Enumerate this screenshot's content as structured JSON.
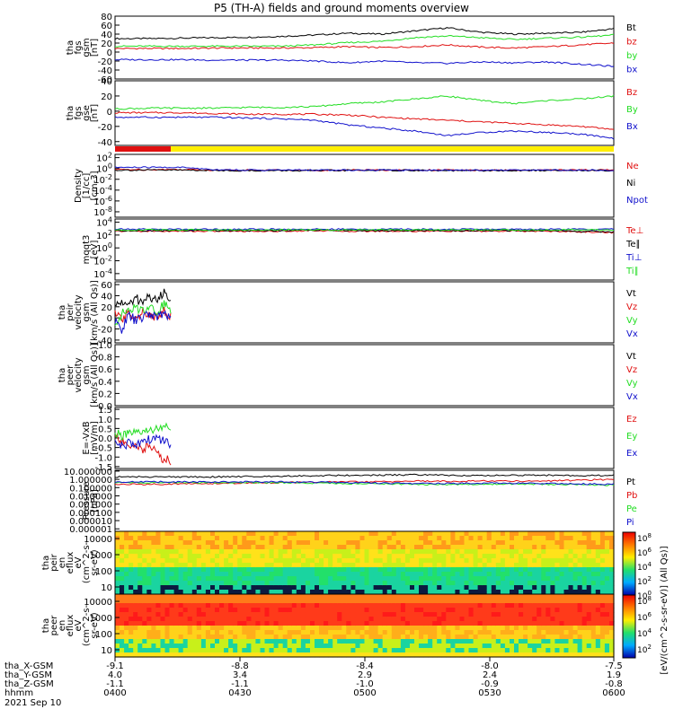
{
  "title": "P5 (TH-A) fields and ground moments overview",
  "date_label": "2021 Sep 10",
  "colors": {
    "black": "#000000",
    "red": "#e01010",
    "green": "#22dd22",
    "blue": "#1010cc",
    "yellow": "#ffee00",
    "frame": "#000000"
  },
  "chart_data": [
    {
      "type": "line",
      "panel": "fgs_gsm",
      "ylabel": [
        "tha",
        "fgs",
        "gsm",
        "[nT]"
      ],
      "yticks": [
        "80",
        "60",
        "40",
        "20",
        "0",
        "-20",
        "-40",
        "-60"
      ],
      "ylim": [
        -60,
        80
      ],
      "series": [
        {
          "name": "Bt",
          "color": "#000000",
          "values": [
            30,
            30,
            31,
            32,
            33,
            35,
            38,
            42,
            40,
            47,
            54,
            44,
            40,
            42,
            44,
            52
          ]
        },
        {
          "name": "bz",
          "color": "#e01010",
          "values": [
            8,
            8,
            8,
            9,
            9,
            9,
            10,
            12,
            10,
            12,
            16,
            11,
            9,
            12,
            16,
            20
          ]
        },
        {
          "name": "by",
          "color": "#22dd22",
          "values": [
            13,
            13,
            13,
            13,
            13,
            13,
            16,
            21,
            24,
            32,
            36,
            32,
            28,
            31,
            33,
            38
          ]
        },
        {
          "name": "bx",
          "color": "#1010cc",
          "values": [
            -17,
            -17,
            -17,
            -18,
            -18,
            -18,
            -20,
            -24,
            -20,
            -24,
            -25,
            -22,
            -24,
            -22,
            -27,
            -32
          ]
        }
      ]
    },
    {
      "type": "line",
      "panel": "fgs_gse",
      "ylabel": [
        "tha",
        "fgs",
        "gse",
        "[nT]"
      ],
      "yticks": [
        "40",
        "20",
        "0",
        "-20",
        "-40"
      ],
      "ylim": [
        -45,
        40
      ],
      "series": [
        {
          "name": "Bz",
          "color": "#e01010",
          "values": [
            -2,
            -2,
            -2,
            -3,
            -4,
            -4,
            -4,
            -5,
            -8,
            -10,
            -12,
            -14,
            -16,
            -18,
            -20,
            -24
          ]
        },
        {
          "name": "By",
          "color": "#22dd22",
          "values": [
            3,
            4,
            4,
            4,
            5,
            5,
            6,
            10,
            12,
            16,
            20,
            14,
            10,
            14,
            16,
            20
          ]
        },
        {
          "name": "Bx",
          "color": "#1010cc",
          "values": [
            -8,
            -8,
            -8,
            -8,
            -9,
            -10,
            -12,
            -18,
            -22,
            -26,
            -32,
            -28,
            -26,
            -28,
            -30,
            -36
          ]
        }
      ]
    },
    {
      "type": "line",
      "panel": "density",
      "ylabel": [
        "Density",
        "[1/cc]",
        "[cm-3]"
      ],
      "yticks": [
        "10^2",
        "10^0",
        "10^-2",
        "10^-4",
        "10^-6",
        "10^-8"
      ],
      "ylim": [
        -9,
        2.6
      ],
      "log": true,
      "series": [
        {
          "name": "Ne",
          "color": "#e01010",
          "values": [
            -0.2,
            -0.2,
            -0.2,
            -0.3,
            -0.3,
            -0.3,
            -0.35,
            -0.3,
            -0.3,
            -0.3,
            -0.3,
            -0.35,
            -0.35,
            -0.3,
            -0.3,
            -0.3
          ]
        },
        {
          "name": "Ni",
          "color": "#000000",
          "values": [
            -0.3,
            -0.3,
            -0.3,
            -0.35,
            -0.4,
            -0.4,
            -0.4,
            -0.35,
            -0.35,
            -0.35,
            -0.4,
            -0.4,
            -0.4,
            -0.35,
            -0.35,
            -0.35
          ]
        },
        {
          "name": "Npot",
          "color": "#1010cc",
          "values": [
            0.2,
            0.2,
            0.2,
            -0.2,
            -0.3,
            -0.3,
            -0.3,
            -0.3,
            -0.3,
            -0.3,
            -0.3,
            -0.3,
            -0.3,
            -0.3,
            -0.3,
            -0.3
          ]
        }
      ]
    },
    {
      "type": "line",
      "panel": "temperature",
      "ylabel": [
        "mqqt3",
        "[eV]"
      ],
      "yticks": [
        "10^4",
        "10^2",
        "10^0",
        "10^-2",
        "10^-4"
      ],
      "ylim": [
        -5,
        4.5
      ],
      "log": true,
      "series": [
        {
          "name": "Te⊥",
          "color": "#e01010",
          "values": [
            2.6,
            2.6,
            2.6,
            2.6,
            2.6,
            2.6,
            2.7,
            2.6,
            2.6,
            2.6,
            2.6,
            2.6,
            2.6,
            2.6,
            2.5,
            2.4
          ]
        },
        {
          "name": "Te∥",
          "color": "#000000",
          "values": [
            2.7,
            2.7,
            2.7,
            2.7,
            2.7,
            2.7,
            2.8,
            2.7,
            2.7,
            2.7,
            2.7,
            2.7,
            2.7,
            2.7,
            2.6,
            2.5
          ]
        },
        {
          "name": "Ti⊥",
          "color": "#1010cc",
          "values": [
            2.9,
            2.9,
            2.9,
            2.9,
            2.9,
            2.9,
            2.9,
            2.9,
            2.9,
            2.9,
            2.9,
            2.9,
            2.9,
            2.9,
            2.9,
            2.9
          ]
        },
        {
          "name": "Ti∥",
          "color": "#22dd22",
          "values": [
            2.8,
            2.8,
            2.8,
            2.8,
            2.8,
            2.8,
            2.8,
            2.8,
            2.8,
            2.8,
            2.8,
            2.8,
            2.8,
            2.8,
            2.8,
            2.8
          ]
        }
      ]
    },
    {
      "type": "line",
      "panel": "peir_velocity",
      "ylabel": [
        "tha",
        "peir",
        "velocity",
        "gsm",
        "[km/s (All Qs)]"
      ],
      "yticks": [
        "60",
        "40",
        "20",
        "0",
        "-20",
        "-40"
      ],
      "ylim": [
        -45,
        65
      ],
      "series": [
        {
          "name": "Vt",
          "color": "#000000",
          "values": [
            20,
            30,
            22,
            35,
            28,
            40,
            30,
            45,
            38
          ]
        },
        {
          "name": "Vz",
          "color": "#e01010",
          "values": [
            5,
            -2,
            8,
            2,
            10,
            0,
            6,
            12,
            4
          ]
        },
        {
          "name": "Vy",
          "color": "#22dd22",
          "values": [
            -10,
            8,
            12,
            18,
            14,
            22,
            10,
            25,
            16
          ]
        },
        {
          "name": "Vx",
          "color": "#1010cc",
          "values": [
            -8,
            -20,
            5,
            -5,
            0,
            8,
            2,
            6,
            4
          ]
        }
      ]
    },
    {
      "type": "line",
      "panel": "peer_velocity",
      "ylabel": [
        "tha",
        "peer",
        "velocity",
        "gsm",
        "[km/s (All Qs)]"
      ],
      "yticks": [
        "1.0",
        "0.8",
        "0.6",
        "0.4",
        "0.2",
        "0.0"
      ],
      "ylim": [
        0,
        1
      ],
      "series": [
        {
          "name": "Vt",
          "color": "#000000",
          "values": []
        },
        {
          "name": "Vz",
          "color": "#e01010",
          "values": []
        },
        {
          "name": "Vy",
          "color": "#22dd22",
          "values": []
        },
        {
          "name": "Vx",
          "color": "#1010cc",
          "values": []
        }
      ]
    },
    {
      "type": "line",
      "panel": "efield",
      "ylabel": [
        "E=-VxB",
        "[mV/m]"
      ],
      "yticks": [
        "1.5",
        "1.0",
        "0.5",
        "0.0",
        "-0.5",
        "-1.0",
        "-1.5"
      ],
      "ylim": [
        -1.6,
        1.6
      ],
      "series": [
        {
          "name": "Ez",
          "color": "#e01010",
          "values": [
            0.1,
            -0.2,
            -0.5,
            -0.3,
            -0.6,
            -0.4,
            -0.8,
            -1.1,
            -1.2
          ]
        },
        {
          "name": "Ey",
          "color": "#22dd22",
          "values": [
            0.3,
            0.1,
            0.2,
            0.2,
            0.3,
            0.4,
            0.5,
            0.6,
            0.4
          ]
        },
        {
          "name": "Ex",
          "color": "#1010cc",
          "values": [
            -0.2,
            -0.4,
            -0.3,
            -0.4,
            -0.2,
            -0.1,
            0.0,
            -0.2,
            -0.3
          ]
        }
      ]
    },
    {
      "type": "line",
      "panel": "pressure",
      "ylabel": [
        "Pressure",
        "[nPa]"
      ],
      "yticks": [
        "10.000000",
        "1.000000",
        "0.100000",
        "0.010000",
        "0.001000",
        "0.000100",
        "0.000010",
        "0.000001"
      ],
      "ylim": [
        -6.3,
        1.1
      ],
      "log": true,
      "series": [
        {
          "name": "Pt",
          "color": "#000000",
          "values": [
            0.3,
            0.3,
            0.3,
            0.3,
            0.35,
            0.4,
            0.45,
            0.5,
            0.5,
            0.55,
            0.5,
            0.45,
            0.5,
            0.5,
            0.45,
            0.5
          ]
        },
        {
          "name": "Pb",
          "color": "#e01010",
          "values": [
            -0.6,
            -0.6,
            -0.55,
            -0.5,
            -0.45,
            -0.4,
            -0.35,
            -0.3,
            -0.3,
            -0.2,
            -0.25,
            -0.2,
            -0.2,
            -0.2,
            -0.1,
            0.0
          ]
        },
        {
          "name": "Pe",
          "color": "#22dd22",
          "values": [
            -0.4,
            -0.4,
            -0.4,
            -0.4,
            -0.4,
            -0.4,
            -0.45,
            -0.5,
            -0.55,
            -0.6,
            -0.65,
            -0.6,
            -0.55,
            -0.6,
            -0.65,
            -0.7
          ]
        },
        {
          "name": "Pi",
          "color": "#1010cc",
          "values": [
            -0.3,
            -0.3,
            -0.3,
            -0.3,
            -0.3,
            -0.3,
            -0.35,
            -0.4,
            -0.45,
            -0.5,
            -0.5,
            -0.45,
            -0.45,
            -0.5,
            -0.55,
            -0.6
          ]
        }
      ]
    },
    {
      "type": "heatmap",
      "panel": "peir_eflux",
      "ylabel": [
        "tha",
        "peir",
        "en",
        "eflux",
        "eV",
        "(cm^2-s-",
        "sr-eV)"
      ],
      "yticks": [
        "10000",
        "1000",
        "100",
        "10"
      ]
    },
    {
      "type": "heatmap",
      "panel": "peer_eflux",
      "ylabel": [
        "tha",
        "peer",
        "en",
        "eflux",
        "eV",
        "(cm^2-s-",
        "sr-eV)"
      ],
      "yticks": [
        "10000",
        "1000",
        "100",
        "10"
      ]
    }
  ],
  "colorbar": {
    "label": "[eV/(cm^2-s-sr-eV)] (All Qs)]",
    "ticks_upper": [
      "10^8",
      "10^6",
      "10^4",
      "10^2",
      "10^0"
    ],
    "ticks_lower": [
      "10^8",
      "10^6",
      "10^4",
      "10^2"
    ]
  },
  "xaxis": {
    "rows": [
      {
        "label": "tha_X-GSM",
        "values": [
          "-9.1",
          "-8.8",
          "-8.4",
          "-8.0",
          "-7.5"
        ]
      },
      {
        "label": "tha_Y-GSM",
        "values": [
          "4.0",
          "3.4",
          "2.9",
          "2.4",
          "1.9"
        ]
      },
      {
        "label": "tha_Z-GSM",
        "values": [
          "-1.1",
          "-1.1",
          "-1.0",
          "-0.9",
          "-0.8"
        ]
      },
      {
        "label": "hhmm",
        "values": [
          "0400",
          "0430",
          "0500",
          "0530",
          "0600"
        ]
      }
    ]
  }
}
